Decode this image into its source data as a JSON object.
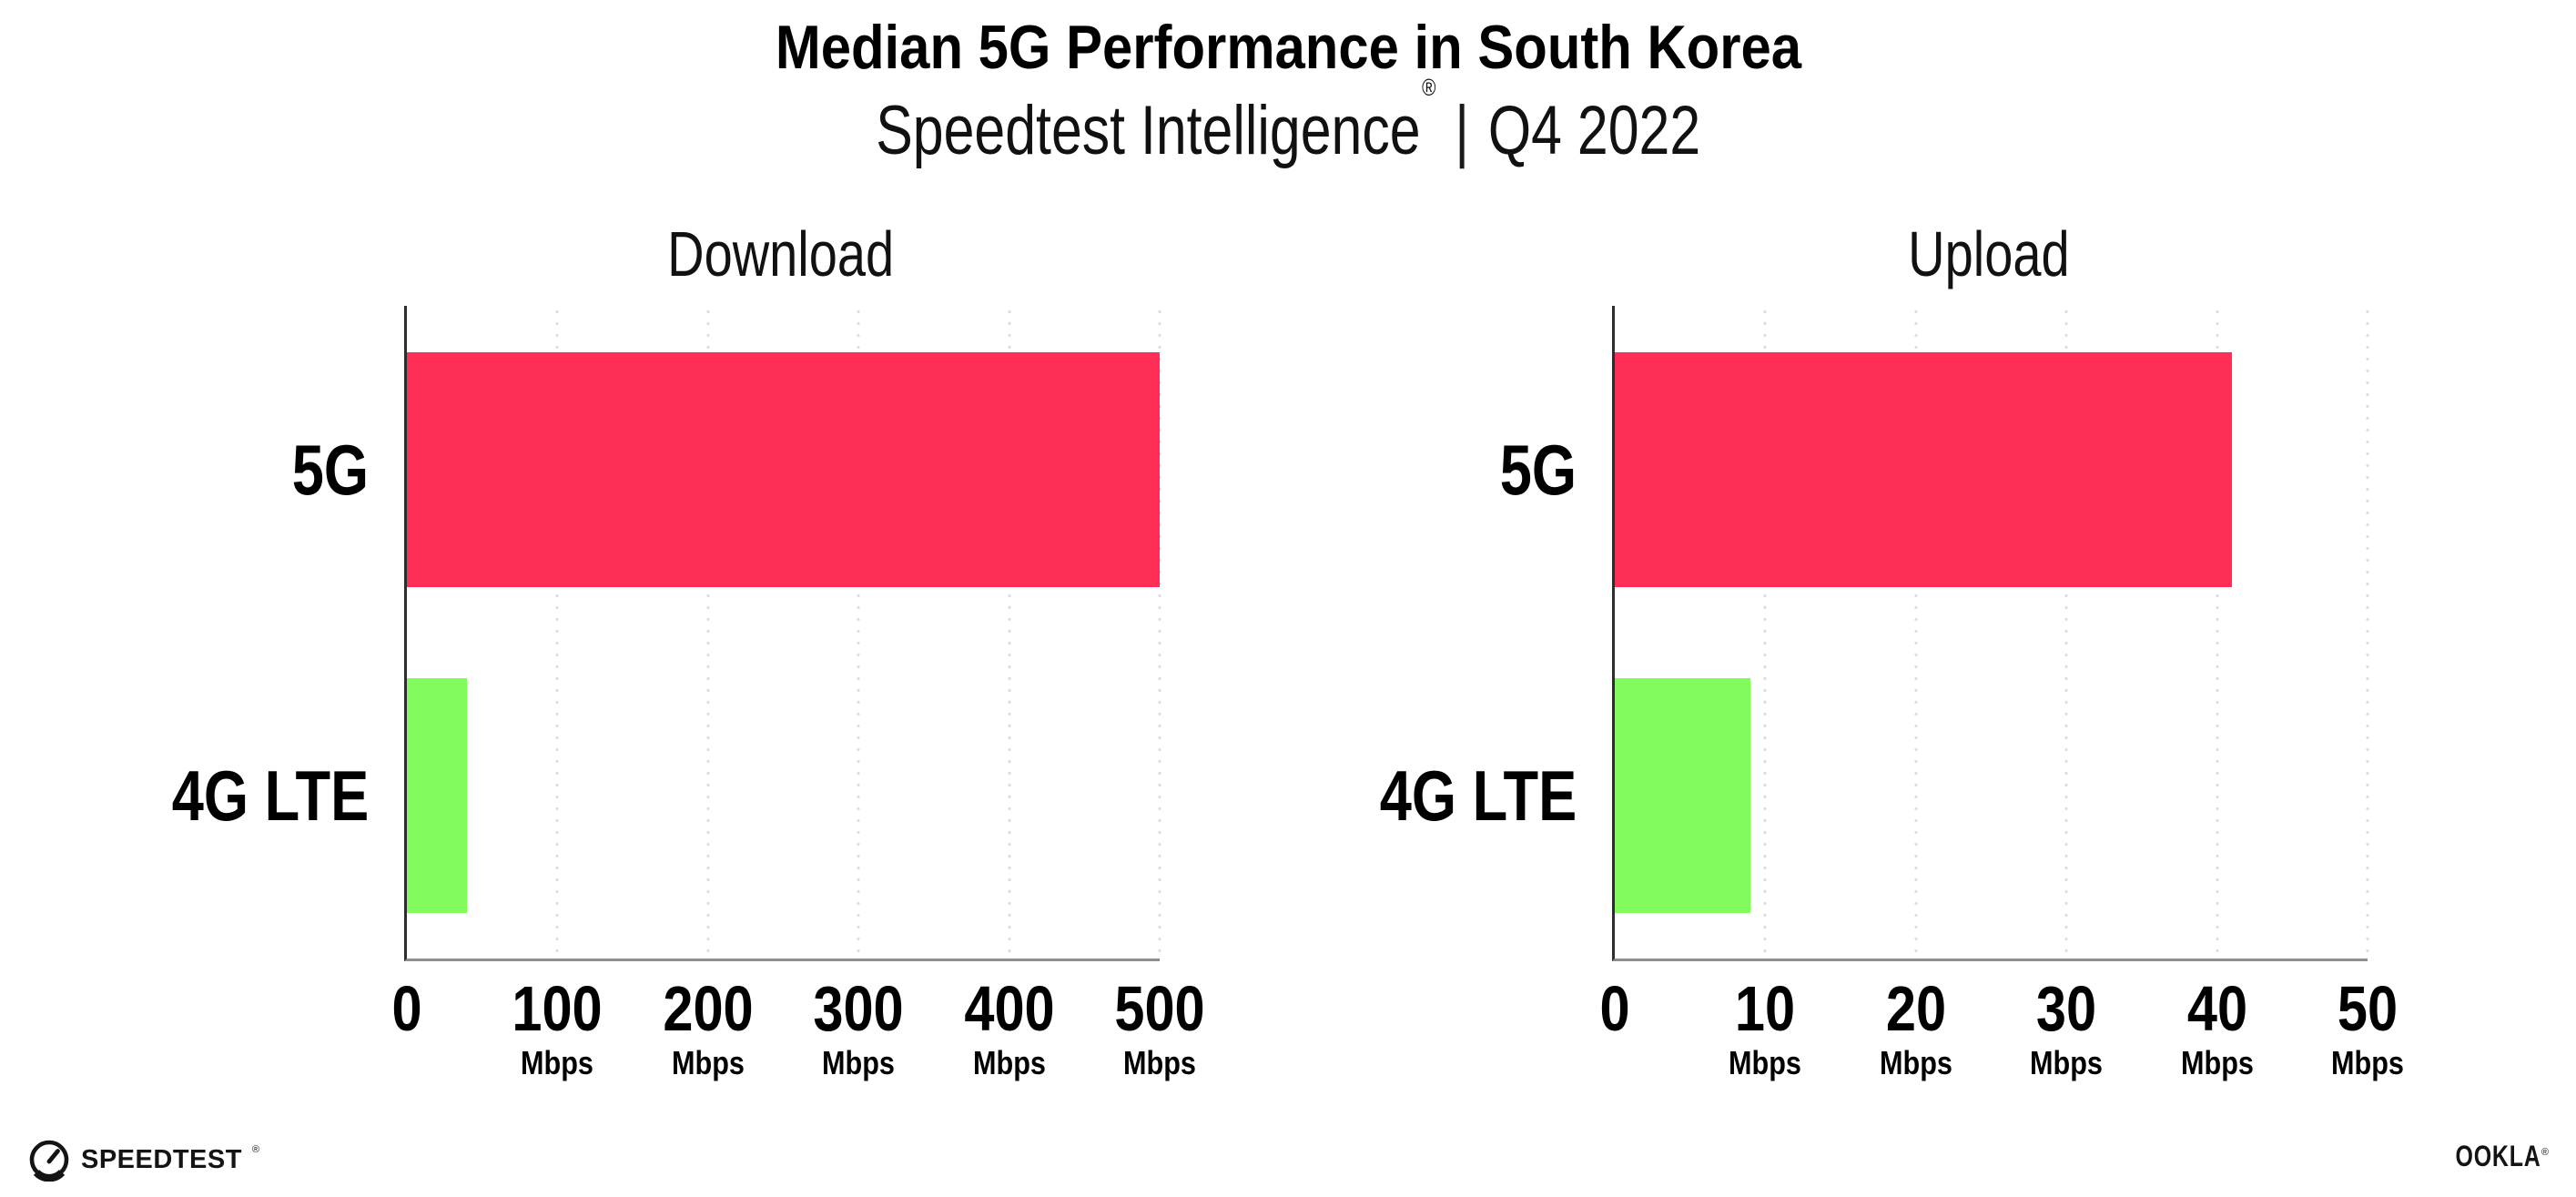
{
  "header": {
    "title": "Median 5G Performance in South Korea",
    "subtitle": {
      "brand": "Speedtest Intelligence",
      "reg": "®",
      "divider": "|",
      "period": "Q4 2022"
    }
  },
  "chart_data": [
    {
      "type": "bar",
      "orientation": "horizontal",
      "title": "Download",
      "categories": [
        "5G",
        "4G LTE"
      ],
      "values": [
        500,
        40
      ],
      "unit": "Mbps",
      "xlim": [
        0,
        500
      ],
      "xticks": [
        0,
        100,
        200,
        300,
        400,
        500
      ],
      "xtick_unit": "Mbps",
      "bar_colors": [
        "#FF2E56",
        "#82FB5E"
      ],
      "grid": "vertical-dotted",
      "legend": "none"
    },
    {
      "type": "bar",
      "orientation": "horizontal",
      "title": "Upload",
      "categories": [
        "5G",
        "4G LTE"
      ],
      "values": [
        41,
        9
      ],
      "unit": "Mbps",
      "xlim": [
        0,
        50
      ],
      "xticks": [
        0,
        10,
        20,
        30,
        40,
        50
      ],
      "xtick_unit": "Mbps",
      "bar_colors": [
        "#FF2E56",
        "#82FB5E"
      ],
      "grid": "vertical-dotted",
      "legend": "none"
    }
  ],
  "footer": {
    "speedtest": {
      "label": "SPEEDTEST",
      "reg": "®",
      "icon": "speedtest-gauge-icon"
    },
    "ookla": {
      "label": "OOKLA",
      "reg": "®"
    }
  },
  "colors": {
    "bar_5g": "#FF2E56",
    "bar_4g": "#82FB5E",
    "gridline": "#DCDCE8",
    "axis_y": "#2D2D2D",
    "axis_x": "#8E8E8E",
    "text": "#000000",
    "background": "#FFFFFF"
  }
}
